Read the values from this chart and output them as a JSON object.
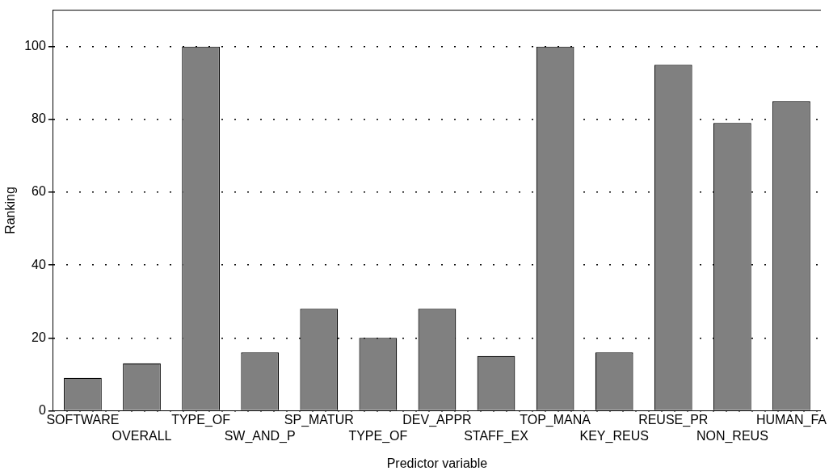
{
  "chart_data": {
    "type": "bar",
    "xlabel": "Predictor variable",
    "ylabel": "Ranking",
    "categories": [
      "SOFTWARE",
      "OVERALL",
      "TYPE_OF",
      "SW_AND_P",
      "SP_MATUR",
      "TYPE_OF",
      "DEV_APPR",
      "STAFF_EX",
      "TOP_MANA",
      "KEY_REUS",
      "REUSE_PR",
      "NON_REUS",
      "HUMAN_FA"
    ],
    "values": [
      9,
      13,
      100,
      16,
      28,
      20,
      28,
      15,
      100,
      16,
      95,
      79,
      85
    ],
    "color": "#808080",
    "ylim": [
      0,
      110
    ],
    "yticks": [
      0,
      20,
      40,
      60,
      80,
      100
    ],
    "grid": true,
    "line_style": "dotted",
    "legend": false
  }
}
